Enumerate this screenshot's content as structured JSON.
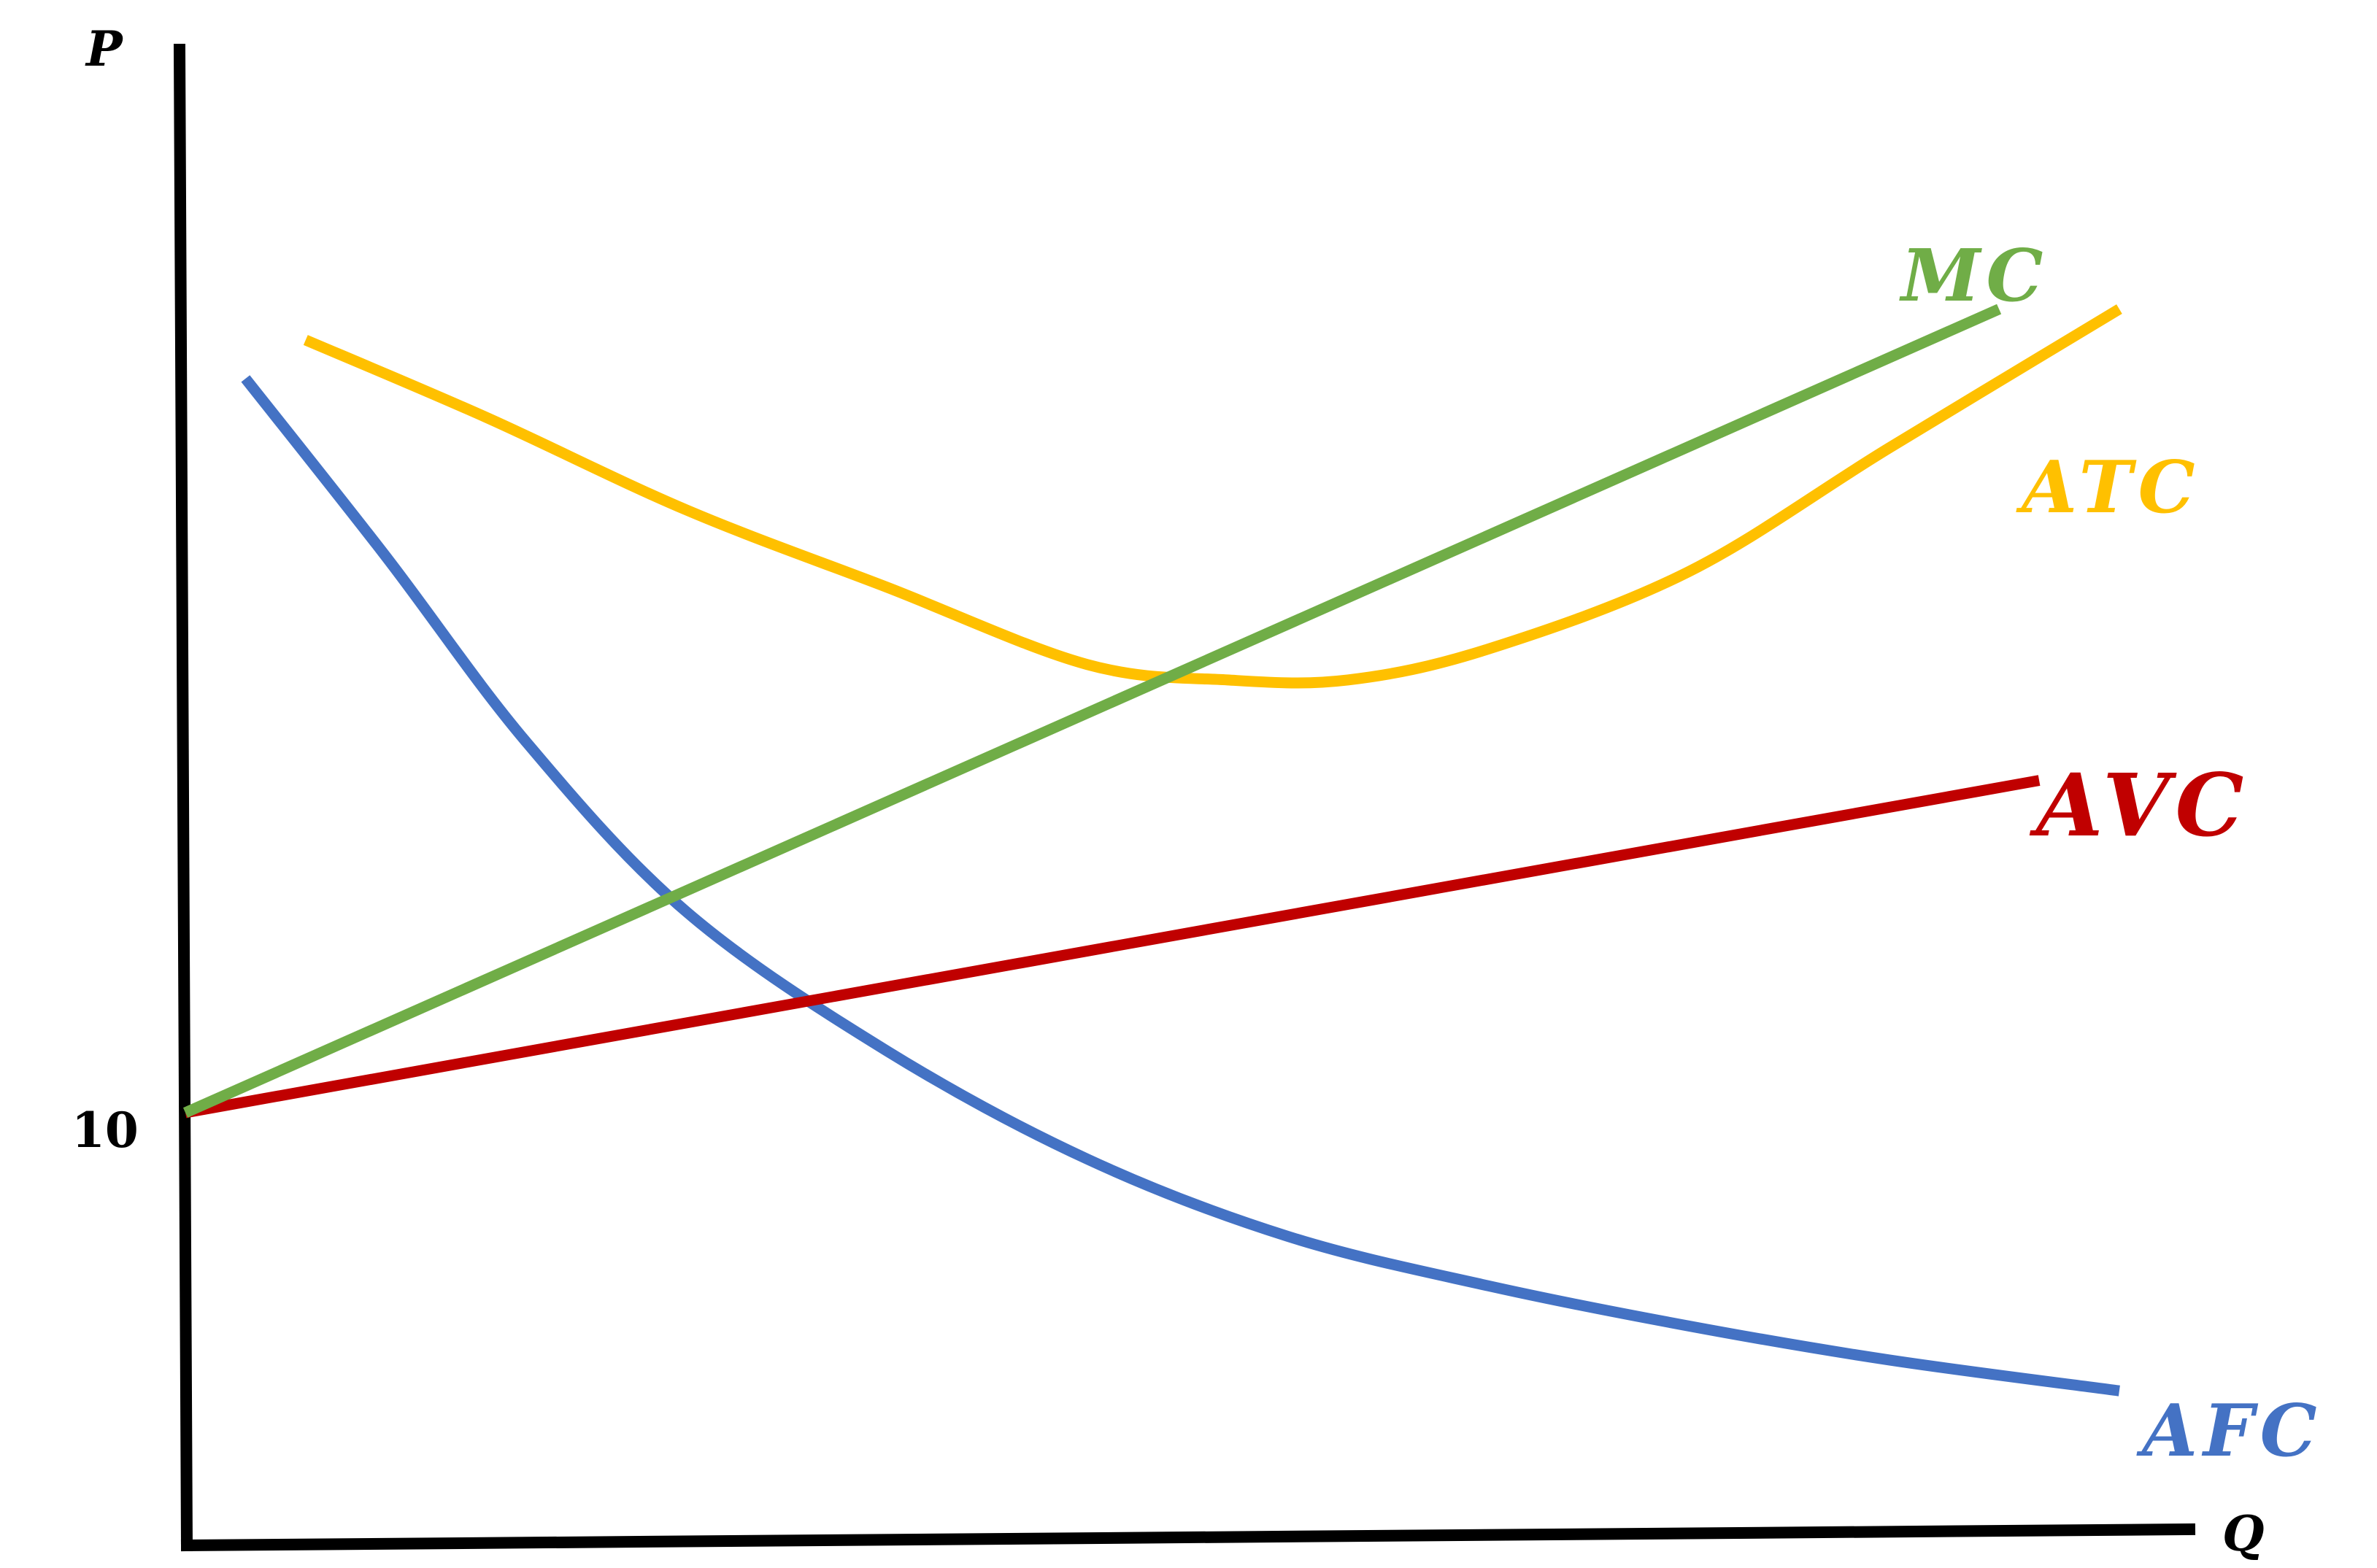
{
  "chart_data": {
    "type": "line",
    "title": "",
    "xlabel": "Q",
    "ylabel": "P",
    "grid": false,
    "legend": "inline labels at line ends",
    "yticks": [
      {
        "value": 10,
        "label": "10"
      }
    ],
    "xlim": [
      0,
      100
    ],
    "ylim": [
      0,
      100
    ],
    "series": [
      {
        "name": "MC",
        "color": "#70AD47",
        "points": [
          [
            0,
            28
          ],
          [
            90.5,
            80
          ]
        ]
      },
      {
        "name": "ATC",
        "color": "#FFC000",
        "points": [
          [
            6,
            78
          ],
          [
            15,
            73
          ],
          [
            25,
            67
          ],
          [
            35,
            62
          ],
          [
            45,
            57
          ],
          [
            52,
            56
          ],
          [
            58,
            56
          ],
          [
            65,
            58
          ],
          [
            75,
            63
          ],
          [
            85,
            71
          ],
          [
            96.5,
            80
          ]
        ]
      },
      {
        "name": "AVC",
        "color": "#C00000",
        "points": [
          [
            0,
            28
          ],
          [
            92.5,
            49.5
          ]
        ]
      },
      {
        "name": "AFC",
        "color": "#4472C4",
        "points": [
          [
            3,
            75.5
          ],
          [
            10,
            64
          ],
          [
            17,
            52
          ],
          [
            25,
            41
          ],
          [
            35,
            32
          ],
          [
            45,
            25
          ],
          [
            55,
            20
          ],
          [
            65,
            16.8
          ],
          [
            75,
            14.2
          ],
          [
            85,
            12
          ],
          [
            96.5,
            10
          ]
        ]
      }
    ]
  }
}
